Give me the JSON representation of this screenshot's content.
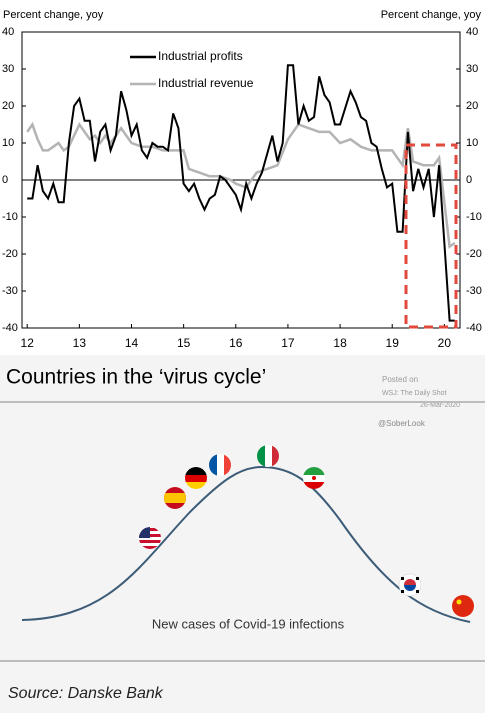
{
  "chart_data": {
    "type": "line",
    "y_label": "Percent change, yoy",
    "y2_label": "Percent change, yoy",
    "xlim": [
      11.9,
      20.3
    ],
    "xticks": [
      12,
      13,
      14,
      15,
      16,
      17,
      18,
      19,
      20
    ],
    "ylim": [
      -40,
      40
    ],
    "yticks": [
      40,
      30,
      20,
      10,
      0,
      -10,
      -20,
      -30,
      -40
    ],
    "y2lim": [
      -40,
      40
    ],
    "y2ticks": [
      40,
      30,
      20,
      10,
      0,
      -10,
      -20,
      -30,
      -40
    ],
    "legend": "upper left",
    "series": [
      {
        "name": "Industrial profits",
        "color": "#000000",
        "x": [
          12.0,
          12.1,
          12.2,
          12.3,
          12.4,
          12.5,
          12.6,
          12.7,
          12.8,
          12.9,
          13.0,
          13.1,
          13.2,
          13.3,
          13.4,
          13.5,
          13.6,
          13.7,
          13.8,
          13.9,
          14.0,
          14.1,
          14.2,
          14.3,
          14.4,
          14.5,
          14.6,
          14.7,
          14.8,
          14.9,
          15.0,
          15.1,
          15.2,
          15.3,
          15.4,
          15.5,
          15.6,
          15.7,
          15.8,
          15.9,
          16.0,
          16.1,
          16.2,
          16.3,
          16.4,
          16.5,
          16.6,
          16.7,
          16.8,
          16.9,
          17.0,
          17.1,
          17.2,
          17.3,
          17.4,
          17.5,
          17.6,
          17.7,
          17.8,
          17.9,
          18.0,
          18.2,
          18.3,
          18.4,
          18.5,
          18.6,
          18.7,
          18.8,
          18.9,
          19.0,
          19.1,
          19.2,
          19.3,
          19.4,
          19.5,
          19.6,
          19.7,
          19.8,
          19.9,
          20.1,
          20.2
        ],
        "values": [
          -5,
          -5,
          4,
          -3,
          -5,
          -1,
          -6,
          -6,
          10,
          20,
          22,
          16,
          16,
          5,
          13,
          15,
          8,
          12,
          24,
          19,
          12,
          15,
          8,
          6,
          10,
          9,
          9,
          8,
          18,
          14,
          -1,
          -3,
          -1,
          -5,
          -8,
          -5,
          -4,
          1,
          0,
          -2,
          -4,
          -8,
          -1,
          -5,
          -1,
          2,
          7,
          12,
          5,
          10,
          31,
          31,
          15,
          20,
          16,
          17,
          28,
          23,
          21,
          15,
          15,
          24,
          21,
          17,
          16,
          10,
          9,
          3,
          -2,
          -1,
          -14,
          -14,
          13,
          -3,
          3,
          -2,
          3,
          -10,
          4,
          -38,
          -38
        ]
      },
      {
        "name": "Industrial revenue",
        "color": "#b4b4b4",
        "x": [
          12.0,
          12.1,
          12.2,
          12.3,
          12.4,
          12.5,
          12.6,
          12.7,
          12.8,
          12.9,
          13.0,
          13.1,
          13.2,
          13.3,
          13.4,
          13.5,
          13.6,
          13.7,
          13.8,
          13.9,
          14.0,
          14.2,
          14.4,
          14.6,
          14.8,
          15.0,
          15.1,
          15.3,
          15.5,
          15.7,
          15.9,
          16.0,
          16.2,
          16.4,
          16.6,
          16.8,
          17.0,
          17.2,
          17.4,
          17.6,
          17.8,
          18.0,
          18.2,
          18.4,
          18.6,
          18.8,
          19.0,
          19.2,
          19.3,
          19.4,
          19.6,
          19.8,
          19.9,
          20.1,
          20.2
        ],
        "values": [
          13,
          15,
          11,
          8,
          8,
          9,
          10,
          8,
          9,
          12,
          15,
          13,
          11,
          12,
          10,
          12,
          10,
          12,
          14,
          12,
          10,
          9,
          9,
          8,
          8,
          8,
          3,
          2,
          1,
          1,
          0,
          -1,
          -2,
          2,
          3,
          4,
          11,
          15,
          14,
          13,
          13,
          10,
          11,
          9,
          8,
          8,
          8,
          4,
          14,
          5,
          4,
          4,
          6,
          -18,
          -17
        ]
      }
    ]
  },
  "infographic": {
    "title": "Countries in the ‘virus cycle’",
    "posted": "Posted on",
    "source_site": "WSJ: The Daily Shot",
    "date": "26-Mar-2020",
    "handle": "@SoberLook",
    "curve_label": "New cases of Covid-19 infections",
    "source": "Source: Danske Bank"
  }
}
